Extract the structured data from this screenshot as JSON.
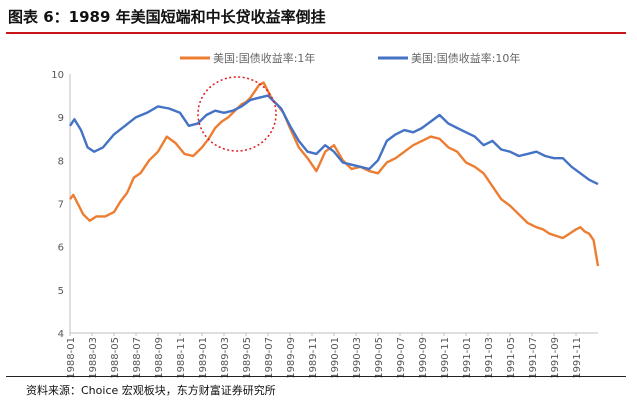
{
  "title": "图表 6：1989 年美国短端和中长贷收益率倒挂",
  "source": "资料来源：Choice 宏观板块，东方财富证券研究所",
  "colors": {
    "series_1y": "#ed7d31",
    "series_10y": "#4472c4",
    "highlight": "#e0191e",
    "axis": "#bfbfbf",
    "title_rule": "#c9141c"
  },
  "chart_data": {
    "type": "line",
    "title": "",
    "xlabel": "",
    "ylabel": "",
    "ylim": [
      4,
      10
    ],
    "yticks": [
      4,
      5,
      6,
      7,
      8,
      9,
      10
    ],
    "grid": false,
    "legend_position": "top",
    "x_tick_labels": [
      "1988-01",
      "1988-03",
      "1988-05",
      "1988-07",
      "1988-09",
      "1988-11",
      "1989-01",
      "1989-03",
      "1989-05",
      "1989-07",
      "1989-09",
      "1989-11",
      "1990-01",
      "1990-03",
      "1990-05",
      "1990-07",
      "1990-09",
      "1990-11",
      "1991-01",
      "1991-03",
      "1991-05",
      "1991-07",
      "1991-09",
      "1991-11"
    ],
    "annotation": "dotted red circle highlighting early-1989 inversion",
    "series": [
      {
        "name": "美国:国债收益率:1年",
        "color": "#ed7d31",
        "t": [
          0,
          0.15,
          0.35,
          0.6,
          0.9,
          1.2,
          1.6,
          2.0,
          2.3,
          2.6,
          2.9,
          3.2,
          3.6,
          4.0,
          4.4,
          4.8,
          5.2,
          5.6,
          6.0,
          6.3,
          6.6,
          6.9,
          7.2,
          7.5,
          7.8,
          8.0,
          8.2,
          8.4,
          8.6,
          8.8,
          9.0,
          9.2,
          9.4,
          9.7,
          10.0,
          10.4,
          10.8,
          11.2,
          11.6,
          12.0,
          12.4,
          12.8,
          13.2,
          13.6,
          14.0,
          14.4,
          14.8,
          15.2,
          15.6,
          16.0,
          16.4,
          16.8,
          17.2,
          17.6,
          18.0,
          18.4,
          18.8,
          19.2,
          19.6,
          20.0,
          20.4,
          20.8,
          21.0,
          21.2,
          21.5,
          21.8,
          22.1,
          22.4,
          22.7,
          23.0,
          23.2,
          23.4,
          23.6,
          23.8,
          24.0
        ],
        "values": [
          7.1,
          7.2,
          7.0,
          6.75,
          6.6,
          6.7,
          6.7,
          6.8,
          7.05,
          7.25,
          7.6,
          7.7,
          8.0,
          8.2,
          8.55,
          8.4,
          8.15,
          8.1,
          8.3,
          8.5,
          8.75,
          8.9,
          9.0,
          9.15,
          9.3,
          9.35,
          9.45,
          9.6,
          9.75,
          9.8,
          9.6,
          9.4,
          9.3,
          9.1,
          8.75,
          8.3,
          8.05,
          7.75,
          8.2,
          8.35,
          8.0,
          7.8,
          7.85,
          7.75,
          7.7,
          7.95,
          8.05,
          8.2,
          8.35,
          8.45,
          8.55,
          8.5,
          8.3,
          8.2,
          7.95,
          7.85,
          7.7,
          7.4,
          7.1,
          6.95,
          6.75,
          6.55,
          6.5,
          6.45,
          6.4,
          6.3,
          6.25,
          6.2,
          6.3,
          6.4,
          6.45,
          6.35,
          6.3,
          6.15,
          5.55
        ]
      },
      {
        "name": "美国:国债收益率:10年",
        "color": "#4472c4",
        "t": [
          0,
          0.2,
          0.5,
          0.8,
          1.1,
          1.5,
          2.0,
          2.5,
          3.0,
          3.5,
          4.0,
          4.5,
          5.0,
          5.4,
          5.8,
          6.2,
          6.6,
          7.0,
          7.4,
          7.8,
          8.2,
          8.6,
          9.0,
          9.3,
          9.6,
          10.0,
          10.4,
          10.8,
          11.2,
          11.6,
          12.0,
          12.4,
          12.8,
          13.2,
          13.6,
          14.0,
          14.4,
          14.8,
          15.2,
          15.6,
          16.0,
          16.4,
          16.8,
          17.2,
          17.6,
          18.0,
          18.4,
          18.8,
          19.2,
          19.6,
          20.0,
          20.4,
          20.8,
          21.2,
          21.6,
          22.0,
          22.4,
          22.8,
          23.2,
          23.6,
          24.0
        ],
        "values": [
          8.8,
          8.95,
          8.7,
          8.3,
          8.2,
          8.3,
          8.6,
          8.8,
          9.0,
          9.1,
          9.25,
          9.2,
          9.1,
          8.8,
          8.85,
          9.05,
          9.15,
          9.1,
          9.15,
          9.25,
          9.4,
          9.45,
          9.5,
          9.35,
          9.2,
          8.8,
          8.45,
          8.2,
          8.15,
          8.35,
          8.2,
          7.95,
          7.9,
          7.85,
          7.8,
          8.0,
          8.45,
          8.6,
          8.7,
          8.65,
          8.75,
          8.9,
          9.05,
          8.85,
          8.75,
          8.65,
          8.55,
          8.35,
          8.45,
          8.25,
          8.2,
          8.1,
          8.15,
          8.2,
          8.1,
          8.05,
          8.05,
          7.85,
          7.7,
          7.55,
          7.45
        ]
      }
    ]
  }
}
